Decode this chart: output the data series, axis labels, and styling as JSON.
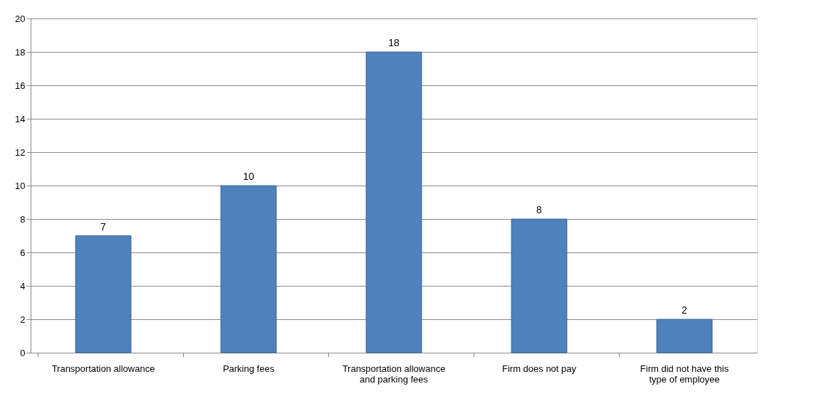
{
  "chart_data": {
    "type": "bar",
    "categories": [
      "Transportation allowance",
      "Parking fees",
      "Transportation allowance and parking fees",
      "Firm does not pay",
      "Firm did not have this type of employee"
    ],
    "values": [
      7,
      10,
      18,
      8,
      2
    ],
    "color": "#4f81bd",
    "ylim": [
      0,
      20
    ],
    "yticks": [
      0,
      2,
      4,
      6,
      8,
      10,
      12,
      14,
      16,
      18,
      20
    ],
    "grid": "y",
    "data_labels": true
  }
}
